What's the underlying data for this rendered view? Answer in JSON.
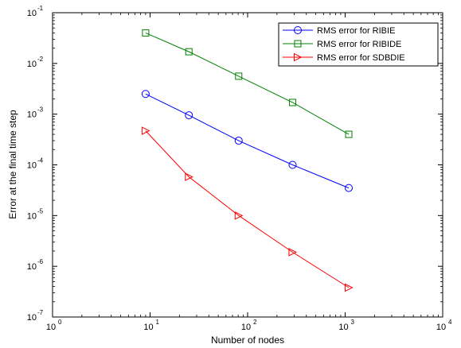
{
  "chart_data": {
    "type": "line",
    "xlabel": "Number of nodes",
    "ylabel": "Error at the final time step",
    "x_scale": "log",
    "y_scale": "log",
    "xlim": [
      1,
      10000
    ],
    "ylim": [
      1e-07,
      0.1
    ],
    "grid": false,
    "legend_position": "top-right",
    "x_ticks": [
      {
        "value": 1,
        "base": "10",
        "exp": "0"
      },
      {
        "value": 10,
        "base": "10",
        "exp": "1"
      },
      {
        "value": 100,
        "base": "10",
        "exp": "2"
      },
      {
        "value": 1000,
        "base": "10",
        "exp": "3"
      },
      {
        "value": 10000,
        "base": "10",
        "exp": "4"
      }
    ],
    "y_ticks": [
      {
        "value": 1e-07,
        "base": "10",
        "exp": "-7"
      },
      {
        "value": 1e-06,
        "base": "10",
        "exp": "-6"
      },
      {
        "value": 1e-05,
        "base": "10",
        "exp": "-5"
      },
      {
        "value": 0.0001,
        "base": "10",
        "exp": "-4"
      },
      {
        "value": 0.001,
        "base": "10",
        "exp": "-3"
      },
      {
        "value": 0.01,
        "base": "10",
        "exp": "-2"
      },
      {
        "value": 0.1,
        "base": "10",
        "exp": "-1"
      }
    ],
    "series": [
      {
        "name": "RMS error for RIBIE",
        "color": "#0000ff",
        "marker": "circle",
        "x": [
          9,
          25,
          81,
          289,
          1089
        ],
        "y": [
          0.0025,
          0.00095,
          0.0003,
          0.0001,
          3.5e-05
        ]
      },
      {
        "name": "RMS error for RIBIDE",
        "color": "#008000",
        "marker": "square",
        "x": [
          9,
          25,
          81,
          289,
          1089
        ],
        "y": [
          0.04,
          0.017,
          0.0056,
          0.0017,
          0.0004
        ]
      },
      {
        "name": "RMS error for SDBDIE",
        "color": "#ff0000",
        "marker": "triangle-right",
        "x": [
          9,
          25,
          81,
          289,
          1089
        ],
        "y": [
          0.00047,
          5.8e-05,
          1e-05,
          1.9e-06,
          3.8e-07
        ]
      }
    ]
  }
}
